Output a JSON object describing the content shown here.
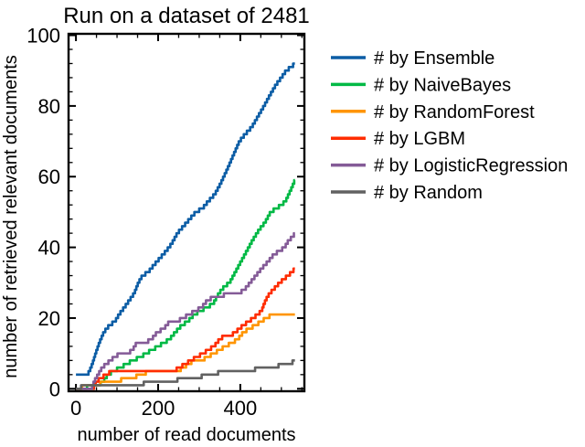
{
  "title": "Run on a dataset of 2481",
  "axes": {
    "xlabel": "number of read documents",
    "ylabel": "number of retrieved relevant documents",
    "x_ticks": [
      0,
      200,
      400
    ],
    "y_ticks": [
      0,
      20,
      40,
      60,
      80,
      100
    ],
    "x_minor_step": 50,
    "x_minor_max": 550,
    "y_minor_step": 4,
    "xlim": [
      -18,
      556
    ],
    "ylim": [
      -0.7,
      100.4
    ]
  },
  "legend": {
    "position": "right"
  },
  "chart_data": {
    "type": "line",
    "step": true,
    "title": "Run on a dataset of 2481",
    "xlabel": "number of read documents",
    "ylabel": "number of retrieved relevant documents",
    "xlim": [
      -18,
      556
    ],
    "ylim": [
      -0.7,
      100.4
    ],
    "grid": false,
    "series": [
      {
        "label": "# by Ensemble",
        "color": "#0C5DA5",
        "points": [
          [
            0,
            4
          ],
          [
            28,
            4
          ],
          [
            33,
            5
          ],
          [
            40,
            7
          ],
          [
            48,
            10
          ],
          [
            57,
            13
          ],
          [
            68,
            16
          ],
          [
            82,
            18
          ],
          [
            95,
            19
          ],
          [
            105,
            21
          ],
          [
            118,
            23
          ],
          [
            130,
            25
          ],
          [
            142,
            27
          ],
          [
            152,
            30
          ],
          [
            162,
            32
          ],
          [
            176,
            33
          ],
          [
            190,
            35
          ],
          [
            205,
            37
          ],
          [
            220,
            39
          ],
          [
            233,
            41
          ],
          [
            247,
            44
          ],
          [
            262,
            46
          ],
          [
            277,
            48
          ],
          [
            292,
            50
          ],
          [
            308,
            51
          ],
          [
            322,
            53
          ],
          [
            338,
            55
          ],
          [
            352,
            58
          ],
          [
            368,
            62
          ],
          [
            383,
            66
          ],
          [
            398,
            70
          ],
          [
            412,
            72
          ],
          [
            428,
            74
          ],
          [
            443,
            77
          ],
          [
            458,
            80
          ],
          [
            472,
            83
          ],
          [
            487,
            86
          ],
          [
            500,
            88
          ],
          [
            512,
            90
          ],
          [
            524,
            91
          ],
          [
            533,
            92
          ]
        ]
      },
      {
        "label": "# by NaiveBayes",
        "color": "#00B945",
        "points": [
          [
            0,
            0
          ],
          [
            54,
            1
          ],
          [
            66,
            2
          ],
          [
            78,
            4
          ],
          [
            92,
            5
          ],
          [
            108,
            6
          ],
          [
            124,
            7
          ],
          [
            138,
            8
          ],
          [
            158,
            9
          ],
          [
            170,
            10
          ],
          [
            186,
            11
          ],
          [
            200,
            12
          ],
          [
            214,
            13
          ],
          [
            228,
            14
          ],
          [
            242,
            16
          ],
          [
            258,
            18
          ],
          [
            272,
            19
          ],
          [
            288,
            21
          ],
          [
            303,
            22
          ],
          [
            318,
            23
          ],
          [
            334,
            24
          ],
          [
            348,
            27
          ],
          [
            362,
            29
          ],
          [
            374,
            30
          ],
          [
            388,
            33
          ],
          [
            402,
            36
          ],
          [
            416,
            39
          ],
          [
            430,
            42
          ],
          [
            446,
            45
          ],
          [
            460,
            47
          ],
          [
            474,
            50
          ],
          [
            488,
            51
          ],
          [
            500,
            52
          ],
          [
            510,
            53
          ],
          [
            518,
            55
          ],
          [
            526,
            57
          ],
          [
            533,
            59
          ]
        ]
      },
      {
        "label": "# by RandomForest",
        "color": "#FF9500",
        "points": [
          [
            0,
            0
          ],
          [
            30,
            1
          ],
          [
            88,
            2
          ],
          [
            132,
            3
          ],
          [
            162,
            4
          ],
          [
            178,
            5
          ],
          [
            248,
            5
          ],
          [
            262,
            6
          ],
          [
            274,
            7
          ],
          [
            288,
            8
          ],
          [
            306,
            8
          ],
          [
            320,
            9
          ],
          [
            336,
            10
          ],
          [
            350,
            11
          ],
          [
            364,
            12
          ],
          [
            380,
            13
          ],
          [
            394,
            14
          ],
          [
            408,
            16
          ],
          [
            422,
            17
          ],
          [
            438,
            18
          ],
          [
            450,
            19
          ],
          [
            464,
            20
          ],
          [
            478,
            21
          ],
          [
            533,
            21
          ]
        ]
      },
      {
        "label": "# by LGBM",
        "color": "#FF2C00",
        "points": [
          [
            0,
            0
          ],
          [
            42,
            0
          ],
          [
            50,
            2
          ],
          [
            60,
            3
          ],
          [
            74,
            4
          ],
          [
            88,
            5
          ],
          [
            238,
            5
          ],
          [
            252,
            6
          ],
          [
            266,
            7
          ],
          [
            280,
            8
          ],
          [
            294,
            9
          ],
          [
            310,
            10
          ],
          [
            322,
            11
          ],
          [
            336,
            12
          ],
          [
            350,
            14
          ],
          [
            362,
            15
          ],
          [
            376,
            15
          ],
          [
            388,
            16
          ],
          [
            398,
            17
          ],
          [
            408,
            18
          ],
          [
            420,
            19
          ],
          [
            432,
            20
          ],
          [
            442,
            21
          ],
          [
            452,
            22
          ],
          [
            458,
            24
          ],
          [
            466,
            26
          ],
          [
            472,
            27
          ],
          [
            480,
            28
          ],
          [
            488,
            29
          ],
          [
            496,
            30
          ],
          [
            506,
            31
          ],
          [
            516,
            32
          ],
          [
            526,
            33
          ],
          [
            533,
            34
          ]
        ]
      },
      {
        "label": "# by LogisticRegression",
        "color": "#845B97",
        "points": [
          [
            0,
            0
          ],
          [
            38,
            0
          ],
          [
            44,
            2
          ],
          [
            54,
            4
          ],
          [
            64,
            6
          ],
          [
            74,
            7
          ],
          [
            84,
            8
          ],
          [
            94,
            9
          ],
          [
            108,
            10
          ],
          [
            126,
            10
          ],
          [
            138,
            11
          ],
          [
            148,
            13
          ],
          [
            168,
            13
          ],
          [
            184,
            14
          ],
          [
            198,
            16
          ],
          [
            214,
            17
          ],
          [
            228,
            19
          ],
          [
            246,
            19
          ],
          [
            260,
            20
          ],
          [
            276,
            21
          ],
          [
            290,
            22
          ],
          [
            306,
            23
          ],
          [
            320,
            25
          ],
          [
            336,
            26
          ],
          [
            352,
            26
          ],
          [
            368,
            27
          ],
          [
            396,
            27
          ],
          [
            410,
            28
          ],
          [
            424,
            30
          ],
          [
            438,
            32
          ],
          [
            452,
            34
          ],
          [
            468,
            36
          ],
          [
            482,
            38
          ],
          [
            496,
            39
          ],
          [
            508,
            40
          ],
          [
            518,
            42
          ],
          [
            528,
            43
          ],
          [
            533,
            44
          ]
        ]
      },
      {
        "label": "# by Random",
        "color": "#616161",
        "points": [
          [
            0,
            0
          ],
          [
            25,
            1
          ],
          [
            160,
            1
          ],
          [
            170,
            2
          ],
          [
            240,
            2
          ],
          [
            254,
            3
          ],
          [
            298,
            3
          ],
          [
            314,
            4
          ],
          [
            338,
            4
          ],
          [
            354,
            5
          ],
          [
            428,
            5
          ],
          [
            444,
            6
          ],
          [
            486,
            6
          ],
          [
            500,
            7
          ],
          [
            524,
            7
          ],
          [
            530,
            8
          ],
          [
            533,
            8
          ]
        ]
      }
    ]
  }
}
